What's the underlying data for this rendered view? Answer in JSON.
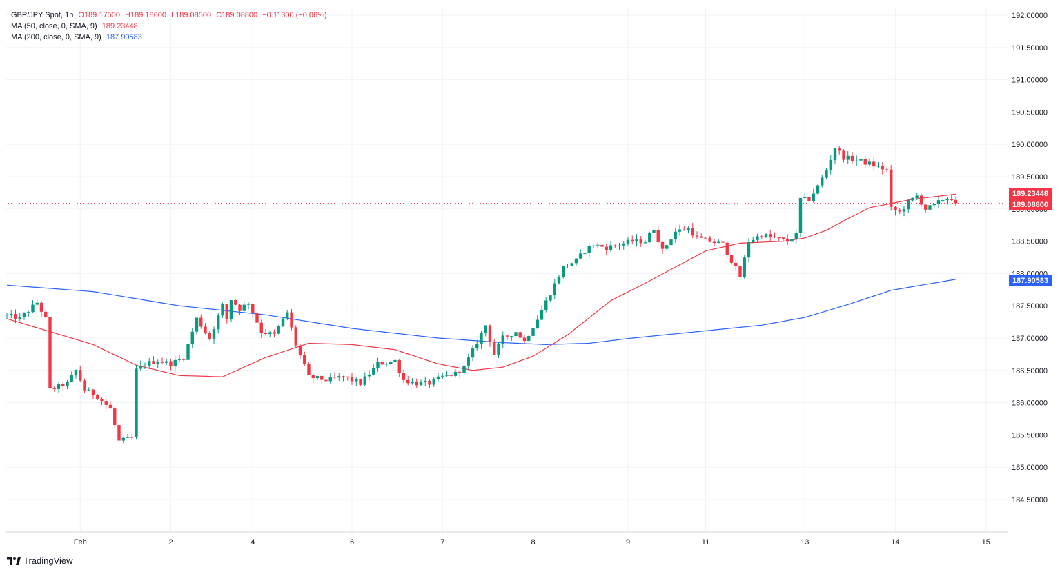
{
  "header": {
    "symbol": "GBP/JPY Spot",
    "interval": "1h",
    "open": "O189.17500",
    "high": "H189.18600",
    "low": "L189.08500",
    "close": "C189.08800",
    "change": "−0.11300 (−0.06%)"
  },
  "indicators": [
    {
      "label": "MA (50, close, 0, SMA, 9)",
      "value": "189.23448",
      "color": "#f23645"
    },
    {
      "label": "MA (200, close, 0, SMA, 9)",
      "value": "187.90583",
      "color": "#2962ff"
    }
  ],
  "brand": {
    "name": "TradingView"
  },
  "colors": {
    "up": "#089981",
    "down": "#f23645",
    "ma50": "#f23645",
    "ma200": "#2962ff",
    "grid": "#f0f3fa"
  },
  "chart_data": {
    "type": "candlestick",
    "title": "GBP/JPY Spot, 1h",
    "ylim": [
      184.0,
      192.15
    ],
    "y_ticks": [
      "192.00000",
      "191.50000",
      "191.00000",
      "190.50000",
      "190.00000",
      "189.50000",
      "189.00000",
      "188.50000",
      "188.00000",
      "187.50000",
      "187.00000",
      "186.50000",
      "186.00000",
      "185.50000",
      "185.00000",
      "184.50000"
    ],
    "x_ticks": [
      {
        "label": "Feb",
        "index": 17
      },
      {
        "label": "2",
        "index": 38
      },
      {
        "label": "4",
        "index": 57
      },
      {
        "label": "6",
        "index": 80
      },
      {
        "label": "7",
        "index": 101
      },
      {
        "label": "8",
        "index": 122
      },
      {
        "label": "9",
        "index": 144
      },
      {
        "label": "11",
        "index": 162
      },
      {
        "label": "13",
        "index": 185
      },
      {
        "label": "14",
        "index": 206
      },
      {
        "label": "15",
        "index": 227
      }
    ],
    "last_price": "189.08800",
    "ma50_last": "189.23448",
    "ma200_last": "187.90583",
    "price_anchors": [
      [
        0,
        187.35
      ],
      [
        3,
        187.3
      ],
      [
        7,
        187.55
      ],
      [
        9,
        187.3
      ],
      [
        10,
        186.2
      ],
      [
        14,
        186.3
      ],
      [
        16,
        186.5
      ],
      [
        18,
        186.2
      ],
      [
        21,
        186.1
      ],
      [
        24,
        185.9
      ],
      [
        26,
        185.4
      ],
      [
        29,
        185.45
      ],
      [
        30,
        186.5
      ],
      [
        32,
        186.6
      ],
      [
        35,
        186.65
      ],
      [
        38,
        186.6
      ],
      [
        41,
        186.7
      ],
      [
        44,
        187.3
      ],
      [
        47,
        187.0
      ],
      [
        50,
        187.5
      ],
      [
        51,
        187.3
      ],
      [
        52,
        187.6
      ],
      [
        54,
        187.45
      ],
      [
        56,
        187.55
      ],
      [
        59,
        187.1
      ],
      [
        62,
        187.05
      ],
      [
        65,
        187.4
      ],
      [
        67,
        186.9
      ],
      [
        70,
        186.4
      ],
      [
        74,
        186.35
      ],
      [
        78,
        186.4
      ],
      [
        82,
        186.3
      ],
      [
        86,
        186.6
      ],
      [
        90,
        186.65
      ],
      [
        92,
        186.35
      ],
      [
        95,
        186.3
      ],
      [
        98,
        186.3
      ],
      [
        101,
        186.4
      ],
      [
        104,
        186.45
      ],
      [
        106,
        186.55
      ],
      [
        108,
        186.8
      ],
      [
        111,
        187.2
      ],
      [
        113,
        186.75
      ],
      [
        115,
        187.0
      ],
      [
        118,
        187.1
      ],
      [
        120,
        186.95
      ],
      [
        123,
        187.3
      ],
      [
        126,
        187.7
      ],
      [
        129,
        188.1
      ],
      [
        132,
        188.2
      ],
      [
        134,
        188.35
      ],
      [
        136,
        188.45
      ],
      [
        139,
        188.4
      ],
      [
        142,
        188.45
      ],
      [
        145,
        188.5
      ],
      [
        148,
        188.5
      ],
      [
        150,
        188.7
      ],
      [
        152,
        188.35
      ],
      [
        155,
        188.65
      ],
      [
        158,
        188.7
      ],
      [
        160,
        188.55
      ],
      [
        163,
        188.5
      ],
      [
        166,
        188.45
      ],
      [
        168,
        188.2
      ],
      [
        170,
        187.95
      ],
      [
        172,
        188.5
      ],
      [
        175,
        188.6
      ],
      [
        178,
        188.55
      ],
      [
        181,
        188.5
      ],
      [
        183,
        188.6
      ],
      [
        184,
        189.15
      ],
      [
        186,
        189.15
      ],
      [
        188,
        189.35
      ],
      [
        190,
        189.6
      ],
      [
        192,
        189.95
      ],
      [
        194,
        189.8
      ],
      [
        197,
        189.75
      ],
      [
        200,
        189.7
      ],
      [
        202,
        189.65
      ],
      [
        204,
        189.6
      ],
      [
        205,
        189.0
      ],
      [
        207,
        188.95
      ],
      [
        209,
        189.1
      ],
      [
        211,
        189.2
      ],
      [
        213,
        189.0
      ],
      [
        215,
        189.05
      ],
      [
        217,
        189.15
      ],
      [
        219,
        189.17
      ],
      [
        220,
        189.09
      ]
    ],
    "ma200_anchors": [
      [
        0,
        187.82
      ],
      [
        20,
        187.72
      ],
      [
        40,
        187.5
      ],
      [
        60,
        187.36
      ],
      [
        80,
        187.15
      ],
      [
        100,
        187.0
      ],
      [
        115,
        186.93
      ],
      [
        125,
        186.9
      ],
      [
        135,
        186.92
      ],
      [
        145,
        187.0
      ],
      [
        160,
        187.1
      ],
      [
        175,
        187.2
      ],
      [
        185,
        187.32
      ],
      [
        195,
        187.52
      ],
      [
        205,
        187.74
      ],
      [
        220,
        187.91
      ]
    ],
    "ma50_anchors": [
      [
        0,
        187.3
      ],
      [
        10,
        187.1
      ],
      [
        20,
        186.9
      ],
      [
        30,
        186.58
      ],
      [
        40,
        186.42
      ],
      [
        50,
        186.4
      ],
      [
        60,
        186.7
      ],
      [
        70,
        186.92
      ],
      [
        80,
        186.9
      ],
      [
        90,
        186.82
      ],
      [
        100,
        186.6
      ],
      [
        108,
        186.5
      ],
      [
        115,
        186.55
      ],
      [
        122,
        186.72
      ],
      [
        130,
        187.05
      ],
      [
        140,
        187.58
      ],
      [
        148,
        187.85
      ],
      [
        155,
        188.1
      ],
      [
        162,
        188.35
      ],
      [
        170,
        188.47
      ],
      [
        180,
        188.5
      ],
      [
        185,
        188.55
      ],
      [
        190,
        188.67
      ],
      [
        195,
        188.85
      ],
      [
        200,
        189.02
      ],
      [
        210,
        189.15
      ],
      [
        220,
        189.23
      ]
    ]
  }
}
